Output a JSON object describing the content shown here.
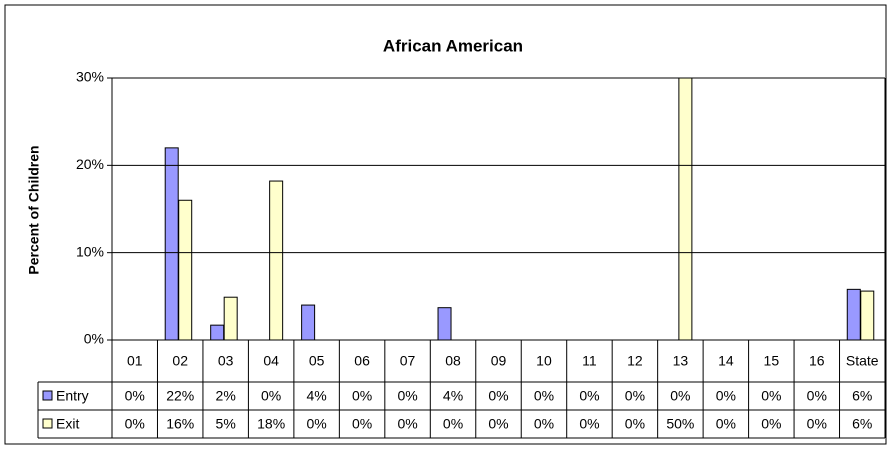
{
  "chart_data": {
    "type": "bar",
    "title": "African American",
    "y_axis_label": "Percent of Children",
    "categories": [
      "01",
      "02",
      "03",
      "04",
      "05",
      "06",
      "07",
      "08",
      "09",
      "10",
      "11",
      "12",
      "13",
      "14",
      "15",
      "16",
      "State"
    ],
    "series": [
      {
        "name": "Entry",
        "color": "#9999ff",
        "values": [
          0,
          22,
          1.7,
          0,
          4,
          0,
          0,
          3.7,
          0,
          0,
          0,
          0,
          0,
          0,
          0,
          0,
          5.8
        ],
        "value_labels": [
          "0%",
          "22%",
          "2%",
          "0%",
          "4%",
          "0%",
          "0%",
          "4%",
          "0%",
          "0%",
          "0%",
          "0%",
          "0%",
          "0%",
          "0%",
          "0%",
          "6%"
        ]
      },
      {
        "name": "Exit",
        "color": "#ffffcc",
        "values": [
          0,
          16,
          4.9,
          18.2,
          0,
          0,
          0,
          0,
          0,
          0,
          0,
          0,
          50,
          0,
          0,
          0,
          5.6
        ],
        "value_labels": [
          "0%",
          "16%",
          "5%",
          "18%",
          "0%",
          "0%",
          "0%",
          "0%",
          "0%",
          "0%",
          "0%",
          "0%",
          "50%",
          "0%",
          "0%",
          "0%",
          "6%"
        ]
      }
    ],
    "ylim": [
      0,
      30
    ],
    "yticks": [
      {
        "value": 0,
        "label": "0%"
      },
      {
        "value": 10,
        "label": "10%"
      },
      {
        "value": 20,
        "label": "20%"
      },
      {
        "value": 30,
        "label": "30%"
      }
    ],
    "grid": true
  }
}
